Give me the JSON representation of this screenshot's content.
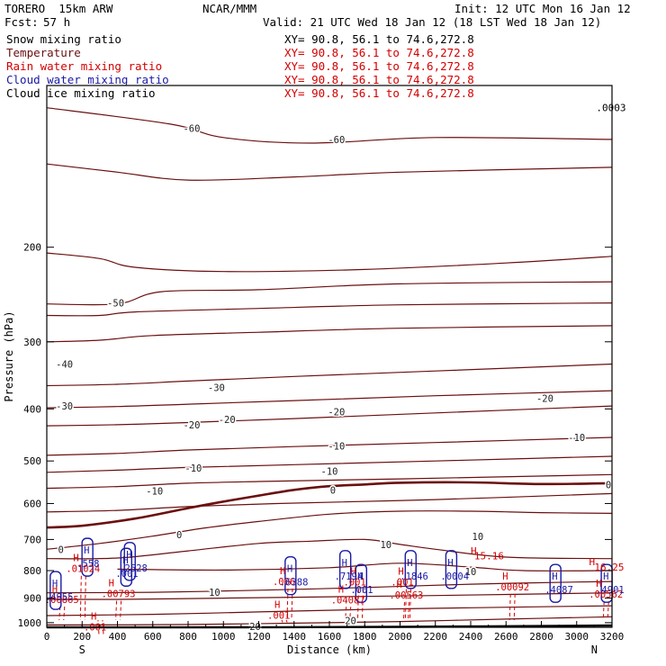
{
  "header": {
    "model": "TORERO  15km ARW",
    "center": "NCAR/MMM",
    "init": "Init: 12 UTC Mon 16 Jan 12",
    "fcst_label": "Fcst:",
    "fcst_value": "57 h",
    "valid": "Valid: 21 UTC Wed 18 Jan 12 (18 LST Wed 18 Jan 12)"
  },
  "colors": {
    "temperature": "#6b0f0f",
    "rain": "#d40000",
    "snow": "#000000",
    "cloud": "#1a1aa6",
    "ground": "#000000"
  },
  "chart_data": {
    "type": "cross-section",
    "xlabel": "Distance (km)",
    "ylabel": "Pressure (hPa)",
    "xlim": [
      0,
      3200
    ],
    "ylim": [
      1020,
      100
    ],
    "x_ticks": [
      0,
      200,
      400,
      600,
      800,
      1000,
      1200,
      1400,
      1600,
      1800,
      2000,
      2200,
      2400,
      2600,
      2800,
      3000,
      3200
    ],
    "y_ticks": [
      200,
      300,
      400,
      500,
      600,
      700,
      800,
      900,
      1000
    ],
    "south_label": "S",
    "north_label": "N",
    "legend": [
      {
        "name": "Snow mixing ratio",
        "color": "#000000",
        "xy": "XY=  90.8, 56.1 to  74.6,272.8"
      },
      {
        "name": "Temperature",
        "color": "#6b0f0f",
        "xy": "XY=  90.8, 56.1 to  74.6,272.8"
      },
      {
        "name": "Rain water mixing ratio",
        "color": "#d40000",
        "xy": "XY=  90.8, 56.1 to  74.6,272.8"
      },
      {
        "name": "Cloud water mixing ratio",
        "color": "#1a1aa6",
        "xy": "XY=  90.8, 56.1 to  74.6,272.8"
      },
      {
        "name": "Cloud ice mixing ratio",
        "color": "#000000",
        "xy": "XY=  90.8, 56.1 to  74.6,272.8"
      }
    ],
    "isotherms": [
      {
        "label": "-60",
        "points": [
          [
            0,
            110
          ],
          [
            700,
            118
          ],
          [
            1000,
            125
          ],
          [
            1500,
            128
          ],
          [
            2200,
            125
          ],
          [
            3200,
            126
          ]
        ],
        "labels_at": [
          [
            820,
            120
          ],
          [
            1640,
            126
          ]
        ]
      },
      {
        "label": "",
        "points": [
          [
            0,
            140
          ],
          [
            400,
            145
          ],
          [
            800,
            150
          ],
          [
            1400,
            148
          ],
          [
            2000,
            145
          ],
          [
            3200,
            142
          ]
        ],
        "labels_at": []
      },
      {
        "label": "",
        "points": [
          [
            0,
            205
          ],
          [
            300,
            210
          ],
          [
            500,
            218
          ],
          [
            1000,
            222
          ],
          [
            1800,
            220
          ],
          [
            2600,
            214
          ],
          [
            3200,
            208
          ]
        ],
        "labels_at": []
      },
      {
        "label": "-50",
        "points": [
          [
            0,
            255
          ],
          [
            400,
            255
          ],
          [
            650,
            242
          ],
          [
            1200,
            240
          ],
          [
            2000,
            234
          ],
          [
            3200,
            232
          ]
        ],
        "labels_at": [
          [
            390,
            254
          ]
        ]
      },
      {
        "label": "",
        "points": [
          [
            0,
            268
          ],
          [
            300,
            268
          ],
          [
            500,
            264
          ],
          [
            1200,
            260
          ],
          [
            2000,
            256
          ],
          [
            3200,
            254
          ]
        ],
        "labels_at": []
      },
      {
        "label": "-40",
        "points": [
          [
            0,
            300
          ],
          [
            300,
            298
          ],
          [
            600,
            292
          ],
          [
            1200,
            288
          ],
          [
            2000,
            283
          ],
          [
            3200,
            280
          ]
        ],
        "labels_at": [
          [
            100,
            330
          ]
        ]
      },
      {
        "label": "-30",
        "points": [
          [
            0,
            362
          ],
          [
            400,
            360
          ],
          [
            800,
            355
          ],
          [
            1400,
            348
          ],
          [
            2200,
            340
          ],
          [
            3200,
            330
          ]
        ],
        "labels_at": [
          [
            100,
            395
          ],
          [
            960,
            365
          ]
        ]
      },
      {
        "label": "-20",
        "points": [
          [
            0,
            398
          ],
          [
            400,
            396
          ],
          [
            800,
            392
          ],
          [
            1400,
            386
          ],
          [
            2200,
            378
          ],
          [
            3200,
            370
          ]
        ],
        "labels_at": [
          [
            1020,
            418
          ],
          [
            1640,
            405
          ],
          [
            2820,
            382
          ]
        ]
      },
      {
        "label": "-20",
        "points": [
          [
            0,
            430
          ],
          [
            400,
            428
          ],
          [
            800,
            424
          ],
          [
            1400,
            417
          ],
          [
            2200,
            407
          ],
          [
            3200,
            395
          ]
        ],
        "labels_at": [
          [
            820,
            428
          ]
        ]
      },
      {
        "label": "-10",
        "points": [
          [
            0,
            488
          ],
          [
            400,
            484
          ],
          [
            800,
            477
          ],
          [
            1400,
            470
          ],
          [
            2200,
            462
          ],
          [
            3200,
            452
          ]
        ],
        "labels_at": [
          [
            1640,
            469
          ],
          [
            3000,
            452
          ]
        ]
      },
      {
        "label": "-10",
        "points": [
          [
            0,
            525
          ],
          [
            400,
            520
          ],
          [
            800,
            514
          ],
          [
            1400,
            508
          ],
          [
            2200,
            500
          ],
          [
            3200,
            490
          ]
        ],
        "labels_at": [
          [
            830,
            515
          ],
          [
            1600,
            522
          ]
        ]
      },
      {
        "label": "-10",
        "points": [
          [
            0,
            562
          ],
          [
            400,
            558
          ],
          [
            800,
            550
          ],
          [
            1200,
            546
          ],
          [
            2000,
            540
          ],
          [
            3200,
            530
          ]
        ],
        "labels_at": [
          [
            610,
            569
          ]
        ]
      },
      {
        "label": "0",
        "points": [
          [
            0,
            622
          ],
          [
            400,
            618
          ],
          [
            800,
            608
          ],
          [
            1300,
            600
          ],
          [
            2200,
            590
          ],
          [
            3200,
            575
          ]
        ],
        "labels_at": []
      },
      {
        "label": "0",
        "points": [
          [
            0,
            665
          ],
          [
            200,
            660
          ],
          [
            500,
            640
          ],
          [
            800,
            612
          ],
          [
            1000,
            595
          ],
          [
            1200,
            580
          ],
          [
            1400,
            566
          ],
          [
            1600,
            557
          ],
          [
            1800,
            553
          ],
          [
            2000,
            549
          ],
          [
            2400,
            548
          ],
          [
            2800,
            552
          ],
          [
            3200,
            550
          ]
        ],
        "labels_at": [
          [
            1620,
            566
          ],
          [
            3180,
            553
          ]
        ],
        "bold": true
      },
      {
        "label": "0",
        "points": [
          [
            0,
            730
          ],
          [
            300,
            712
          ],
          [
            600,
            690
          ],
          [
            900,
            666
          ],
          [
            1200,
            648
          ],
          [
            1600,
            628
          ],
          [
            2000,
            620
          ],
          [
            2400,
            620
          ],
          [
            2800,
            624
          ],
          [
            3200,
            626
          ]
        ],
        "labels_at": [
          [
            80,
            731
          ],
          [
            750,
            685
          ]
        ]
      },
      {
        "label": "10",
        "points": [
          [
            0,
            760
          ],
          [
            400,
            758
          ],
          [
            800,
            735
          ],
          [
            1200,
            712
          ],
          [
            1500,
            705
          ],
          [
            1800,
            700
          ],
          [
            2000,
            715
          ],
          [
            2200,
            730
          ],
          [
            2600,
            755
          ],
          [
            3200,
            760
          ]
        ],
        "labels_at": [
          [
            2440,
            691
          ],
          [
            1920,
            715
          ]
        ]
      },
      {
        "label": "10",
        "points": [
          [
            400,
            795
          ],
          [
            1000,
            798
          ],
          [
            1600,
            790
          ],
          [
            2000,
            775
          ],
          [
            2400,
            788
          ],
          [
            2700,
            800
          ],
          [
            3200,
            800
          ]
        ],
        "labels_at": [
          [
            2400,
            803
          ]
        ]
      },
      {
        "label": "10",
        "points": [
          [
            0,
            880
          ],
          [
            600,
            878
          ],
          [
            1200,
            870
          ],
          [
            1800,
            860
          ],
          [
            2400,
            848
          ],
          [
            3000,
            840
          ],
          [
            3200,
            838
          ]
        ],
        "labels_at": [
          [
            950,
            878
          ]
        ]
      },
      {
        "label": "",
        "points": [
          [
            0,
            905
          ],
          [
            400,
            905
          ],
          [
            1000,
            900
          ],
          [
            1600,
            895
          ],
          [
            2200,
            890
          ],
          [
            3200,
            880
          ]
        ],
        "labels_at": []
      },
      {
        "label": "20",
        "points": [
          [
            0,
            970
          ],
          [
            600,
            965
          ],
          [
            1200,
            955
          ],
          [
            1800,
            945
          ],
          [
            2400,
            938
          ],
          [
            3200,
            930
          ]
        ],
        "labels_at": [
          [
            1720,
            990
          ]
        ]
      },
      {
        "label": "20",
        "points": [
          [
            0,
            1010
          ],
          [
            800,
            1008
          ],
          [
            1400,
            1002
          ],
          [
            2000,
            995
          ],
          [
            2600,
            985
          ],
          [
            3200,
            975
          ]
        ],
        "labels_at": [
          [
            1180,
            1017
          ]
        ]
      }
    ],
    "ground": [
      [
        0,
        1020
      ],
      [
        1000,
        1020
      ],
      [
        2000,
        1018
      ],
      [
        3200,
        1012
      ]
    ],
    "rain_maxima": [
      {
        "x": 180,
        "p": 793,
        "text": ".01024"
      },
      {
        "x": 380,
        "p": 883,
        "text": ".00793"
      },
      {
        "x": 60,
        "p": 905,
        "text": ".00865"
      },
      {
        "x": 1350,
        "p": 838,
        "text": ".006"
      },
      {
        "x": 1680,
        "p": 906,
        "text": ".04087"
      },
      {
        "x": 2010,
        "p": 888,
        "text": ".00563"
      },
      {
        "x": 2610,
        "p": 857,
        "text": ".00092"
      },
      {
        "x": 3140,
        "p": 885,
        "text": ".00562"
      },
      {
        "x": 1320,
        "p": 968,
        "text": ".001"
      },
      {
        "x": 280,
        "p": 1018,
        "text": ".001"
      },
      {
        "x": 1750,
        "p": 840,
        "text": ".001"
      },
      {
        "x": 2020,
        "p": 840,
        "text": ".001"
      }
    ],
    "cloud_maxima": [
      {
        "x": 230,
        "p": 776,
        "text": ".558"
      },
      {
        "x": 470,
        "p": 790,
        "text": ".2528"
      },
      {
        "x": 450,
        "p": 810,
        "text": ".001"
      },
      {
        "x": 50,
        "p": 895,
        "text": ".4955"
      },
      {
        "x": 1380,
        "p": 840,
        "text": ".6388"
      },
      {
        "x": 1690,
        "p": 818,
        "text": ".7194"
      },
      {
        "x": 1780,
        "p": 868,
        "text": ".001"
      },
      {
        "x": 2060,
        "p": 818,
        "text": ".1846"
      },
      {
        "x": 2290,
        "p": 818,
        "text": ".0004"
      },
      {
        "x": 2880,
        "p": 868,
        "text": ".4087"
      },
      {
        "x": 3170,
        "p": 868,
        "text": ".4901"
      }
    ],
    "annotations": [
      {
        "text": "H",
        "x": 2400,
        "p": 735,
        "color": "#d40000"
      },
      {
        "text": "15.16",
        "x": 2420,
        "p": 750,
        "color": "#d40000"
      },
      {
        "text": "H",
        "x": 3070,
        "p": 770,
        "color": "#d40000"
      },
      {
        "text": "16.25",
        "x": 3100,
        "p": 787,
        "color": "#d40000"
      },
      {
        "text": ".0003",
        "x": 3110,
        "p": 110,
        "color": "#000000"
      }
    ]
  }
}
